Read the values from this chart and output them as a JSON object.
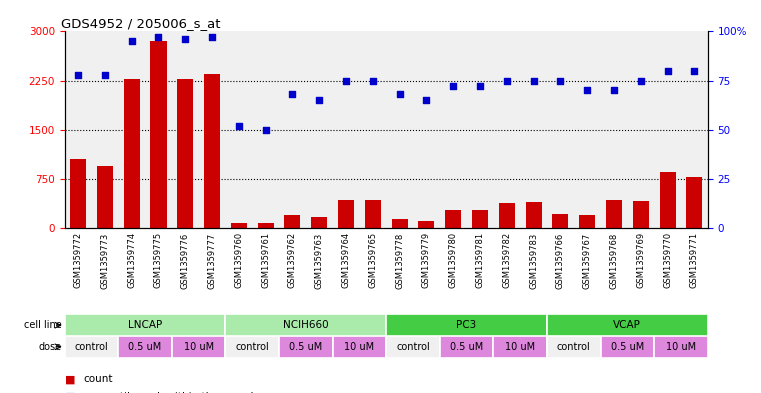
{
  "title": "GDS4952 / 205006_s_at",
  "samples": [
    "GSM1359772",
    "GSM1359773",
    "GSM1359774",
    "GSM1359775",
    "GSM1359776",
    "GSM1359777",
    "GSM1359760",
    "GSM1359761",
    "GSM1359762",
    "GSM1359763",
    "GSM1359764",
    "GSM1359765",
    "GSM1359778",
    "GSM1359779",
    "GSM1359780",
    "GSM1359781",
    "GSM1359782",
    "GSM1359783",
    "GSM1359766",
    "GSM1359767",
    "GSM1359768",
    "GSM1359769",
    "GSM1359770",
    "GSM1359771"
  ],
  "counts": [
    1050,
    950,
    2280,
    2850,
    2280,
    2350,
    80,
    70,
    200,
    170,
    430,
    430,
    130,
    110,
    280,
    280,
    380,
    390,
    220,
    200,
    430,
    410,
    850,
    780
  ],
  "percentile_ranks": [
    78,
    78,
    95,
    97,
    96,
    97,
    52,
    50,
    68,
    65,
    75,
    75,
    68,
    65,
    72,
    72,
    75,
    75,
    75,
    70,
    70,
    75,
    80,
    80
  ],
  "cell_lines": [
    {
      "label": "LNCAP",
      "start": 0,
      "end": 6,
      "color": "#AAEAAA"
    },
    {
      "label": "NCIH660",
      "start": 6,
      "end": 12,
      "color": "#AAEAAA"
    },
    {
      "label": "PC3",
      "start": 12,
      "end": 18,
      "color": "#44CC44"
    },
    {
      "label": "VCAP",
      "start": 18,
      "end": 24,
      "color": "#44CC44"
    }
  ],
  "doses": [
    {
      "label": "control",
      "start": 0,
      "end": 2,
      "color": "#F0F0F0"
    },
    {
      "label": "0.5 uM",
      "start": 2,
      "end": 4,
      "color": "#DD88DD"
    },
    {
      "label": "10 uM",
      "start": 4,
      "end": 6,
      "color": "#DD88DD"
    },
    {
      "label": "control",
      "start": 6,
      "end": 8,
      "color": "#F0F0F0"
    },
    {
      "label": "0.5 uM",
      "start": 8,
      "end": 10,
      "color": "#DD88DD"
    },
    {
      "label": "10 uM",
      "start": 10,
      "end": 12,
      "color": "#DD88DD"
    },
    {
      "label": "control",
      "start": 12,
      "end": 14,
      "color": "#F0F0F0"
    },
    {
      "label": "0.5 uM",
      "start": 14,
      "end": 16,
      "color": "#DD88DD"
    },
    {
      "label": "10 uM",
      "start": 16,
      "end": 18,
      "color": "#DD88DD"
    },
    {
      "label": "control",
      "start": 18,
      "end": 20,
      "color": "#F0F0F0"
    },
    {
      "label": "0.5 uM",
      "start": 20,
      "end": 22,
      "color": "#DD88DD"
    },
    {
      "label": "10 uM",
      "start": 22,
      "end": 24,
      "color": "#DD88DD"
    }
  ],
  "bar_color": "#CC0000",
  "dot_color": "#0000CC",
  "ylim_left": [
    0,
    3000
  ],
  "ylim_right": [
    0,
    100
  ],
  "yticks_left": [
    0,
    750,
    1500,
    2250,
    3000
  ],
  "yticks_right": [
    0,
    25,
    50,
    75,
    100
  ],
  "plot_bg_color": "#F0F0F0",
  "legend_count_color": "#CC0000",
  "legend_dot_color": "#0000CC"
}
